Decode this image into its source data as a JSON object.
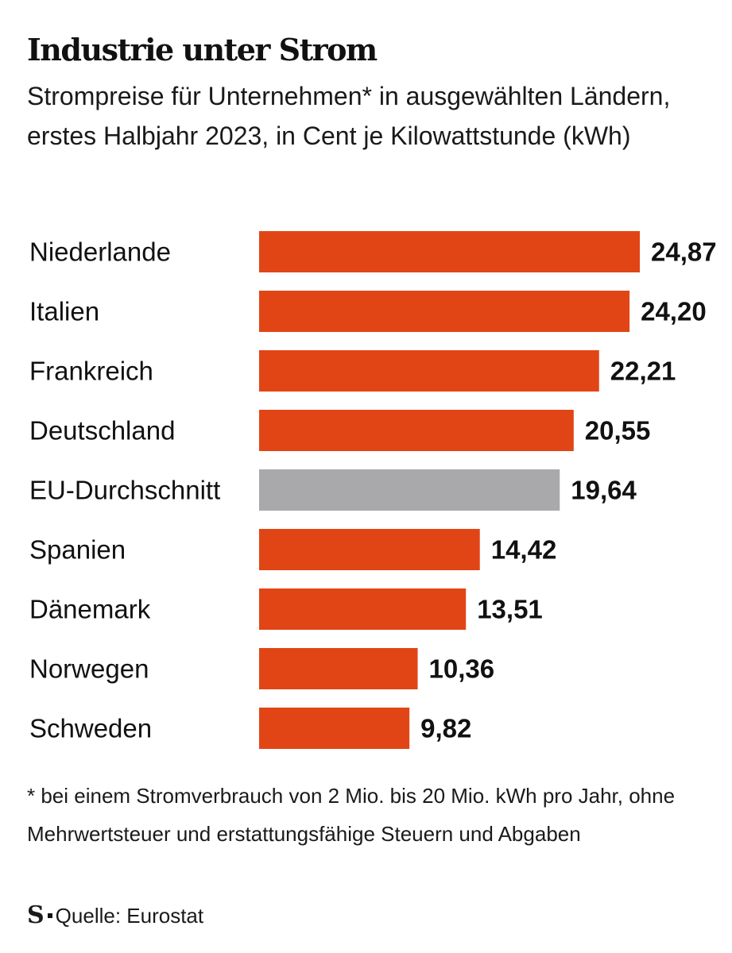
{
  "title": "Industrie unter Strom",
  "subtitle": "Strompreise für Unternehmen* in ausgewählten Ländern, erstes Halbjahr 2023, in Cent je Kilowattstunde (kWh)",
  "footnote": "* bei einem Stromverbrauch von 2 Mio. bis 20 Mio. kWh pro Jahr, ohne Mehrwertsteuer und erstattungsfähige Steuern und Abgaben",
  "source": {
    "logo": "S",
    "text": "Quelle: Eurostat"
  },
  "colors": {
    "bar": "#e24515",
    "highlight": "#a9a9ab",
    "text": "#111111"
  },
  "chart_data": {
    "type": "bar",
    "orientation": "horizontal",
    "categories": [
      "Niederlande",
      "Italien",
      "Frankreich",
      "Deutschland",
      "EU-Durchschnitt",
      "Spanien",
      "Dänemark",
      "Norwegen",
      "Schweden"
    ],
    "values": [
      24.87,
      24.2,
      22.21,
      20.55,
      19.64,
      14.42,
      13.51,
      10.36,
      9.82
    ],
    "value_labels": [
      "24,87",
      "24,20",
      "22,21",
      "20,55",
      "19,64",
      "14,42",
      "13,51",
      "10,36",
      "9,82"
    ],
    "highlighted": [
      "EU-Durchschnitt"
    ],
    "xlim": [
      0,
      24.87
    ],
    "grid": false,
    "legend": "none"
  }
}
